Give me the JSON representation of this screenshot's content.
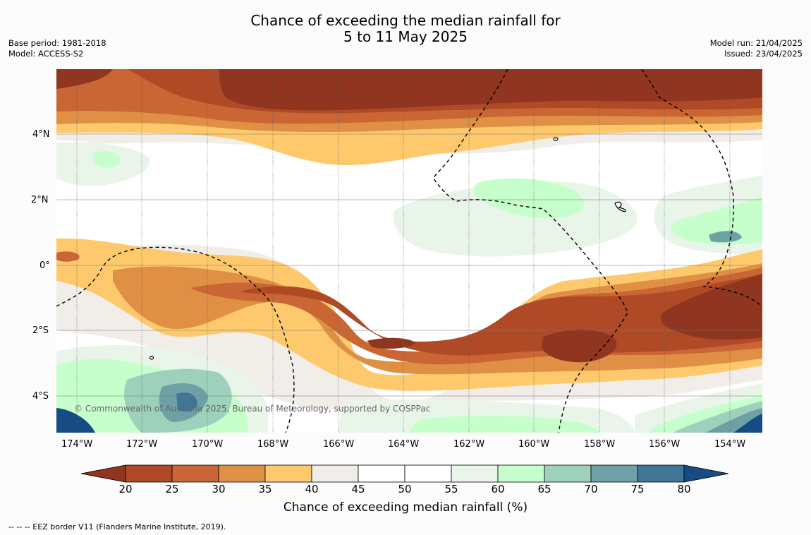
{
  "title": {
    "line1": "Chance of exceeding the median rainfall for",
    "line2": "5 to 11 May 2025"
  },
  "meta": {
    "base_period": "Base period: 1981-2018",
    "model": "Model: ACCESS-S2",
    "model_run": "Model run: 21/04/2025",
    "issued": "Issued: 23/04/2025"
  },
  "map": {
    "copyright": "© Commonwealth of Australia 2025, Bureau of Meteorology, supported by COSPPac",
    "lat_labels": [
      "4°N",
      "2°N",
      "0°",
      "2°S",
      "4°S"
    ],
    "lon_labels": [
      "174°W",
      "172°W",
      "170°W",
      "168°W",
      "166°W",
      "164°W",
      "162°W",
      "160°W",
      "158°W",
      "156°W",
      "154°W"
    ]
  },
  "colorbar": {
    "title": "Chance of exceeding median rainfall (%)",
    "ticks": [
      "20",
      "25",
      "30",
      "35",
      "40",
      "45",
      "50",
      "55",
      "60",
      "65",
      "70",
      "75",
      "80"
    ],
    "colors": [
      "#8f3520",
      "#b04a26",
      "#c96634",
      "#df9045",
      "#fdc96c",
      "#f1ede8",
      "#ffffff",
      "#ffffff",
      "#e9f5e9",
      "#c6ffcc",
      "#9ed1bb",
      "#6ea1a6",
      "#3f7698",
      "#164b84"
    ]
  },
  "footer": "--  --  -- EEZ border V11 (Flanders Marine Institute, 2019)."
}
